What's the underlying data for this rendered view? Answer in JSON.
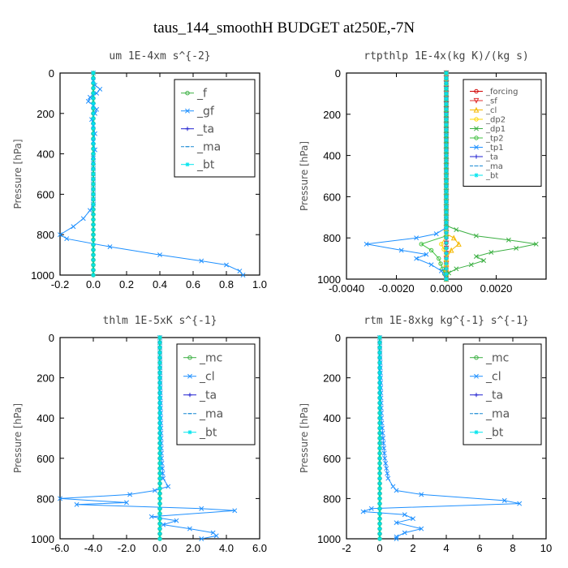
{
  "figure_title": "taus_144_smoothH  BUDGET at250E,-7N",
  "chart_data": [
    {
      "type": "line",
      "title": "um  1E-4xm s^{-2}",
      "ylabel": "Pressure [hPa]",
      "xlim": [
        -0.2,
        1.0
      ],
      "ylim": [
        1000,
        0
      ],
      "xticks": [
        "-0.2",
        "0.0",
        "0.2",
        "0.4",
        "0.6",
        "0.8",
        "1.0"
      ],
      "xtick_values": [
        -0.2,
        0.0,
        0.2,
        0.4,
        0.6,
        0.8,
        1.0
      ],
      "yticks": [
        "0",
        "200",
        "400",
        "600",
        "800",
        "1000"
      ],
      "ytick_values": [
        0,
        200,
        400,
        600,
        800,
        1000
      ],
      "legend_position": "top-right",
      "series": [
        {
          "name": "_f",
          "color": "#3cb043",
          "marker": "o",
          "points": [
            [
              0.0,
              0
            ],
            [
              0.0,
              1000
            ]
          ]
        },
        {
          "name": "_gf",
          "color": "#1e90ff",
          "marker": "x",
          "points": [
            [
              0.0,
              0
            ],
            [
              0.0,
              40
            ],
            [
              0.01,
              60
            ],
            [
              0.04,
              80
            ],
            [
              0.02,
              100
            ],
            [
              -0.02,
              120
            ],
            [
              -0.03,
              140
            ],
            [
              0.0,
              160
            ],
            [
              0.02,
              180
            ],
            [
              0.01,
              200
            ],
            [
              -0.01,
              230
            ],
            [
              0.0,
              260
            ],
            [
              0.01,
              300
            ],
            [
              0.0,
              340
            ],
            [
              0.01,
              380
            ],
            [
              0.0,
              420
            ],
            [
              0.0,
              500
            ],
            [
              0.0,
              600
            ],
            [
              0.0,
              650
            ],
            [
              -0.02,
              680
            ],
            [
              -0.06,
              720
            ],
            [
              -0.12,
              760
            ],
            [
              -0.2,
              800
            ],
            [
              -0.16,
              820
            ],
            [
              0.1,
              860
            ],
            [
              0.4,
              900
            ],
            [
              0.65,
              930
            ],
            [
              0.8,
              950
            ],
            [
              0.88,
              980
            ],
            [
              0.9,
              1000
            ]
          ]
        },
        {
          "name": "_ta",
          "color": "#2020d0",
          "marker": "+",
          "points": [
            [
              0.0,
              0
            ],
            [
              0.0,
              1000
            ]
          ]
        },
        {
          "name": "_ma",
          "color": "#1a8ad4",
          "marker": "-",
          "points": [
            [
              0.0,
              0
            ],
            [
              0.0,
              1000
            ]
          ]
        },
        {
          "name": "_bt",
          "color": "#00e5ee",
          "marker": "*",
          "points": [
            [
              0.0,
              0
            ],
            [
              0.0,
              1000
            ]
          ]
        }
      ]
    },
    {
      "type": "line",
      "title": "rtpthlp  1E-4x(kg K)/(kg s)",
      "ylabel": "Pressure [hPa]",
      "xlim": [
        -0.004,
        0.004
      ],
      "ylim": [
        1000,
        0
      ],
      "xticks": [
        "-0.0040",
        "-0.0020",
        "0.0000",
        "0.0020"
      ],
      "xtick_values": [
        -0.004,
        -0.002,
        0.0,
        0.002
      ],
      "yticks": [
        "0",
        "200",
        "400",
        "600",
        "800",
        "1000"
      ],
      "ytick_values": [
        0,
        200,
        400,
        600,
        800,
        1000
      ],
      "legend_position": "top-right",
      "series": [
        {
          "name": "_forcing",
          "color": "#d00000",
          "marker": "o",
          "points": [
            [
              0.0,
              0
            ],
            [
              0.0,
              1000
            ]
          ]
        },
        {
          "name": "_sf",
          "color": "#e03030",
          "marker": "v",
          "points": [
            [
              0.0,
              0
            ],
            [
              0.0,
              1000
            ]
          ]
        },
        {
          "name": "_cl",
          "color": "#f5b800",
          "marker": "^",
          "points": [
            [
              0.0,
              0
            ],
            [
              0.0,
              780
            ],
            [
              0.0003,
              800
            ],
            [
              0.0005,
              830
            ],
            [
              0.0002,
              860
            ],
            [
              0.0,
              900
            ],
            [
              0.0,
              1000
            ]
          ]
        },
        {
          "name": "_dp2",
          "color": "#ffd700",
          "marker": "o",
          "points": [
            [
              0.0,
              0
            ],
            [
              0.0,
              790
            ],
            [
              -0.0002,
              830
            ],
            [
              0.0,
              880
            ],
            [
              0.0,
              1000
            ]
          ]
        },
        {
          "name": "_dp1",
          "color": "#3cb043",
          "marker": "x",
          "points": [
            [
              0.0,
              0
            ],
            [
              0.0,
              740
            ],
            [
              0.0004,
              760
            ],
            [
              0.0012,
              790
            ],
            [
              0.0025,
              810
            ],
            [
              0.0036,
              830
            ],
            [
              0.0028,
              850
            ],
            [
              0.0018,
              870
            ],
            [
              0.0012,
              890
            ],
            [
              0.0015,
              910
            ],
            [
              0.001,
              930
            ],
            [
              0.0004,
              950
            ],
            [
              0.0001,
              970
            ],
            [
              0.0,
              1000
            ]
          ]
        },
        {
          "name": "_tp2",
          "color": "#40c040",
          "marker": "o",
          "points": [
            [
              0.0,
              0
            ],
            [
              0.0,
              790
            ],
            [
              -0.001,
              830
            ],
            [
              -0.0006,
              860
            ],
            [
              -0.0003,
              900
            ],
            [
              0.0,
              1000
            ]
          ]
        },
        {
          "name": "_tp1",
          "color": "#1e90ff",
          "marker": "x",
          "points": [
            [
              0.0,
              0
            ],
            [
              0.0,
              750
            ],
            [
              -0.0004,
              780
            ],
            [
              -0.0012,
              800
            ],
            [
              -0.0032,
              830
            ],
            [
              -0.0018,
              860
            ],
            [
              -0.0008,
              880
            ],
            [
              -0.0012,
              900
            ],
            [
              -0.0006,
              930
            ],
            [
              -0.0002,
              960
            ],
            [
              0.0,
              1000
            ]
          ]
        },
        {
          "name": "_ta",
          "color": "#2020d0",
          "marker": "+",
          "points": [
            [
              0.0,
              0
            ],
            [
              0.0,
              1000
            ]
          ]
        },
        {
          "name": "_ma",
          "color": "#1a8ad4",
          "marker": "-",
          "points": [
            [
              0.0,
              0
            ],
            [
              0.0,
              1000
            ]
          ]
        },
        {
          "name": "_bt",
          "color": "#00e5ee",
          "marker": "*",
          "points": [
            [
              0.0,
              0
            ],
            [
              0.0,
              1000
            ]
          ]
        }
      ]
    },
    {
      "type": "line",
      "title": "thlm  1E-5xK s^{-1}",
      "ylabel": "Pressure [hPa]",
      "xlim": [
        -6.0,
        6.0
      ],
      "ylim": [
        1000,
        0
      ],
      "xticks": [
        "-6.0",
        "-4.0",
        "-2.0",
        "0.0",
        "2.0",
        "4.0",
        "6.0"
      ],
      "xtick_values": [
        -6,
        -4,
        -2,
        0,
        2,
        4,
        6
      ],
      "yticks": [
        "0",
        "200",
        "400",
        "600",
        "800",
        "1000"
      ],
      "ytick_values": [
        0,
        200,
        400,
        600,
        800,
        1000
      ],
      "legend_position": "top-right",
      "series": [
        {
          "name": "_mc",
          "color": "#3cb043",
          "marker": "o",
          "points": [
            [
              0.0,
              0
            ],
            [
              0.0,
              1000
            ]
          ]
        },
        {
          "name": "_cl",
          "color": "#1e90ff",
          "marker": "x",
          "points": [
            [
              0.0,
              0
            ],
            [
              0.02,
              200
            ],
            [
              0.05,
              400
            ],
            [
              0.1,
              600
            ],
            [
              0.2,
              700
            ],
            [
              0.5,
              740
            ],
            [
              -0.3,
              760
            ],
            [
              -1.8,
              780
            ],
            [
              -6.0,
              800
            ],
            [
              -2.0,
              820
            ],
            [
              -5.0,
              830
            ],
            [
              2.5,
              850
            ],
            [
              4.5,
              860
            ],
            [
              -0.5,
              890
            ],
            [
              1.0,
              910
            ],
            [
              0.2,
              930
            ],
            [
              1.8,
              950
            ],
            [
              3.2,
              970
            ],
            [
              3.4,
              985
            ],
            [
              2.5,
              1000
            ]
          ]
        },
        {
          "name": "_ta",
          "color": "#2020d0",
          "marker": "+",
          "points": [
            [
              0.0,
              0
            ],
            [
              0.0,
              1000
            ]
          ]
        },
        {
          "name": "_ma",
          "color": "#1a8ad4",
          "marker": "-",
          "points": [
            [
              0.0,
              0
            ],
            [
              0.0,
              1000
            ]
          ]
        },
        {
          "name": "_bt",
          "color": "#00e5ee",
          "marker": "*",
          "points": [
            [
              0.0,
              0
            ],
            [
              0.0,
              1000
            ]
          ]
        }
      ]
    },
    {
      "type": "line",
      "title": "rtm  1E-8xkg kg^{-1} s^{-1}",
      "ylabel": "Pressure [hPa]",
      "xlim": [
        -2,
        10
      ],
      "ylim": [
        1000,
        0
      ],
      "xticks": [
        "-2",
        "0",
        "2",
        "4",
        "6",
        "8",
        "10"
      ],
      "xtick_values": [
        -2,
        0,
        2,
        4,
        6,
        8,
        10
      ],
      "yticks": [
        "0",
        "200",
        "400",
        "600",
        "800",
        "1000"
      ],
      "ytick_values": [
        0,
        200,
        400,
        600,
        800,
        1000
      ],
      "legend_position": "top-right",
      "series": [
        {
          "name": "_mc",
          "color": "#3cb043",
          "marker": "o",
          "points": [
            [
              0.0,
              0
            ],
            [
              0.0,
              1000
            ]
          ]
        },
        {
          "name": "_cl",
          "color": "#1e90ff",
          "marker": "x",
          "points": [
            [
              0.0,
              0
            ],
            [
              0.05,
              200
            ],
            [
              0.1,
              400
            ],
            [
              0.3,
              600
            ],
            [
              0.5,
              700
            ],
            [
              0.8,
              740
            ],
            [
              1.0,
              760
            ],
            [
              2.5,
              780
            ],
            [
              7.5,
              810
            ],
            [
              8.4,
              825
            ],
            [
              -0.5,
              850
            ],
            [
              -1.0,
              865
            ],
            [
              1.5,
              880
            ],
            [
              2.0,
              900
            ],
            [
              1.0,
              920
            ],
            [
              2.5,
              950
            ],
            [
              1.5,
              970
            ],
            [
              1.0,
              990
            ],
            [
              1.0,
              1000
            ]
          ]
        },
        {
          "name": "_ta",
          "color": "#2020d0",
          "marker": "+",
          "points": [
            [
              0.0,
              0
            ],
            [
              0.0,
              1000
            ]
          ]
        },
        {
          "name": "_ma",
          "color": "#1a8ad4",
          "marker": "-",
          "points": [
            [
              0.0,
              0
            ],
            [
              0.0,
              1000
            ]
          ]
        },
        {
          "name": "_bt",
          "color": "#00e5ee",
          "marker": "*",
          "points": [
            [
              0.0,
              0
            ],
            [
              0.0,
              1000
            ]
          ]
        }
      ]
    }
  ]
}
